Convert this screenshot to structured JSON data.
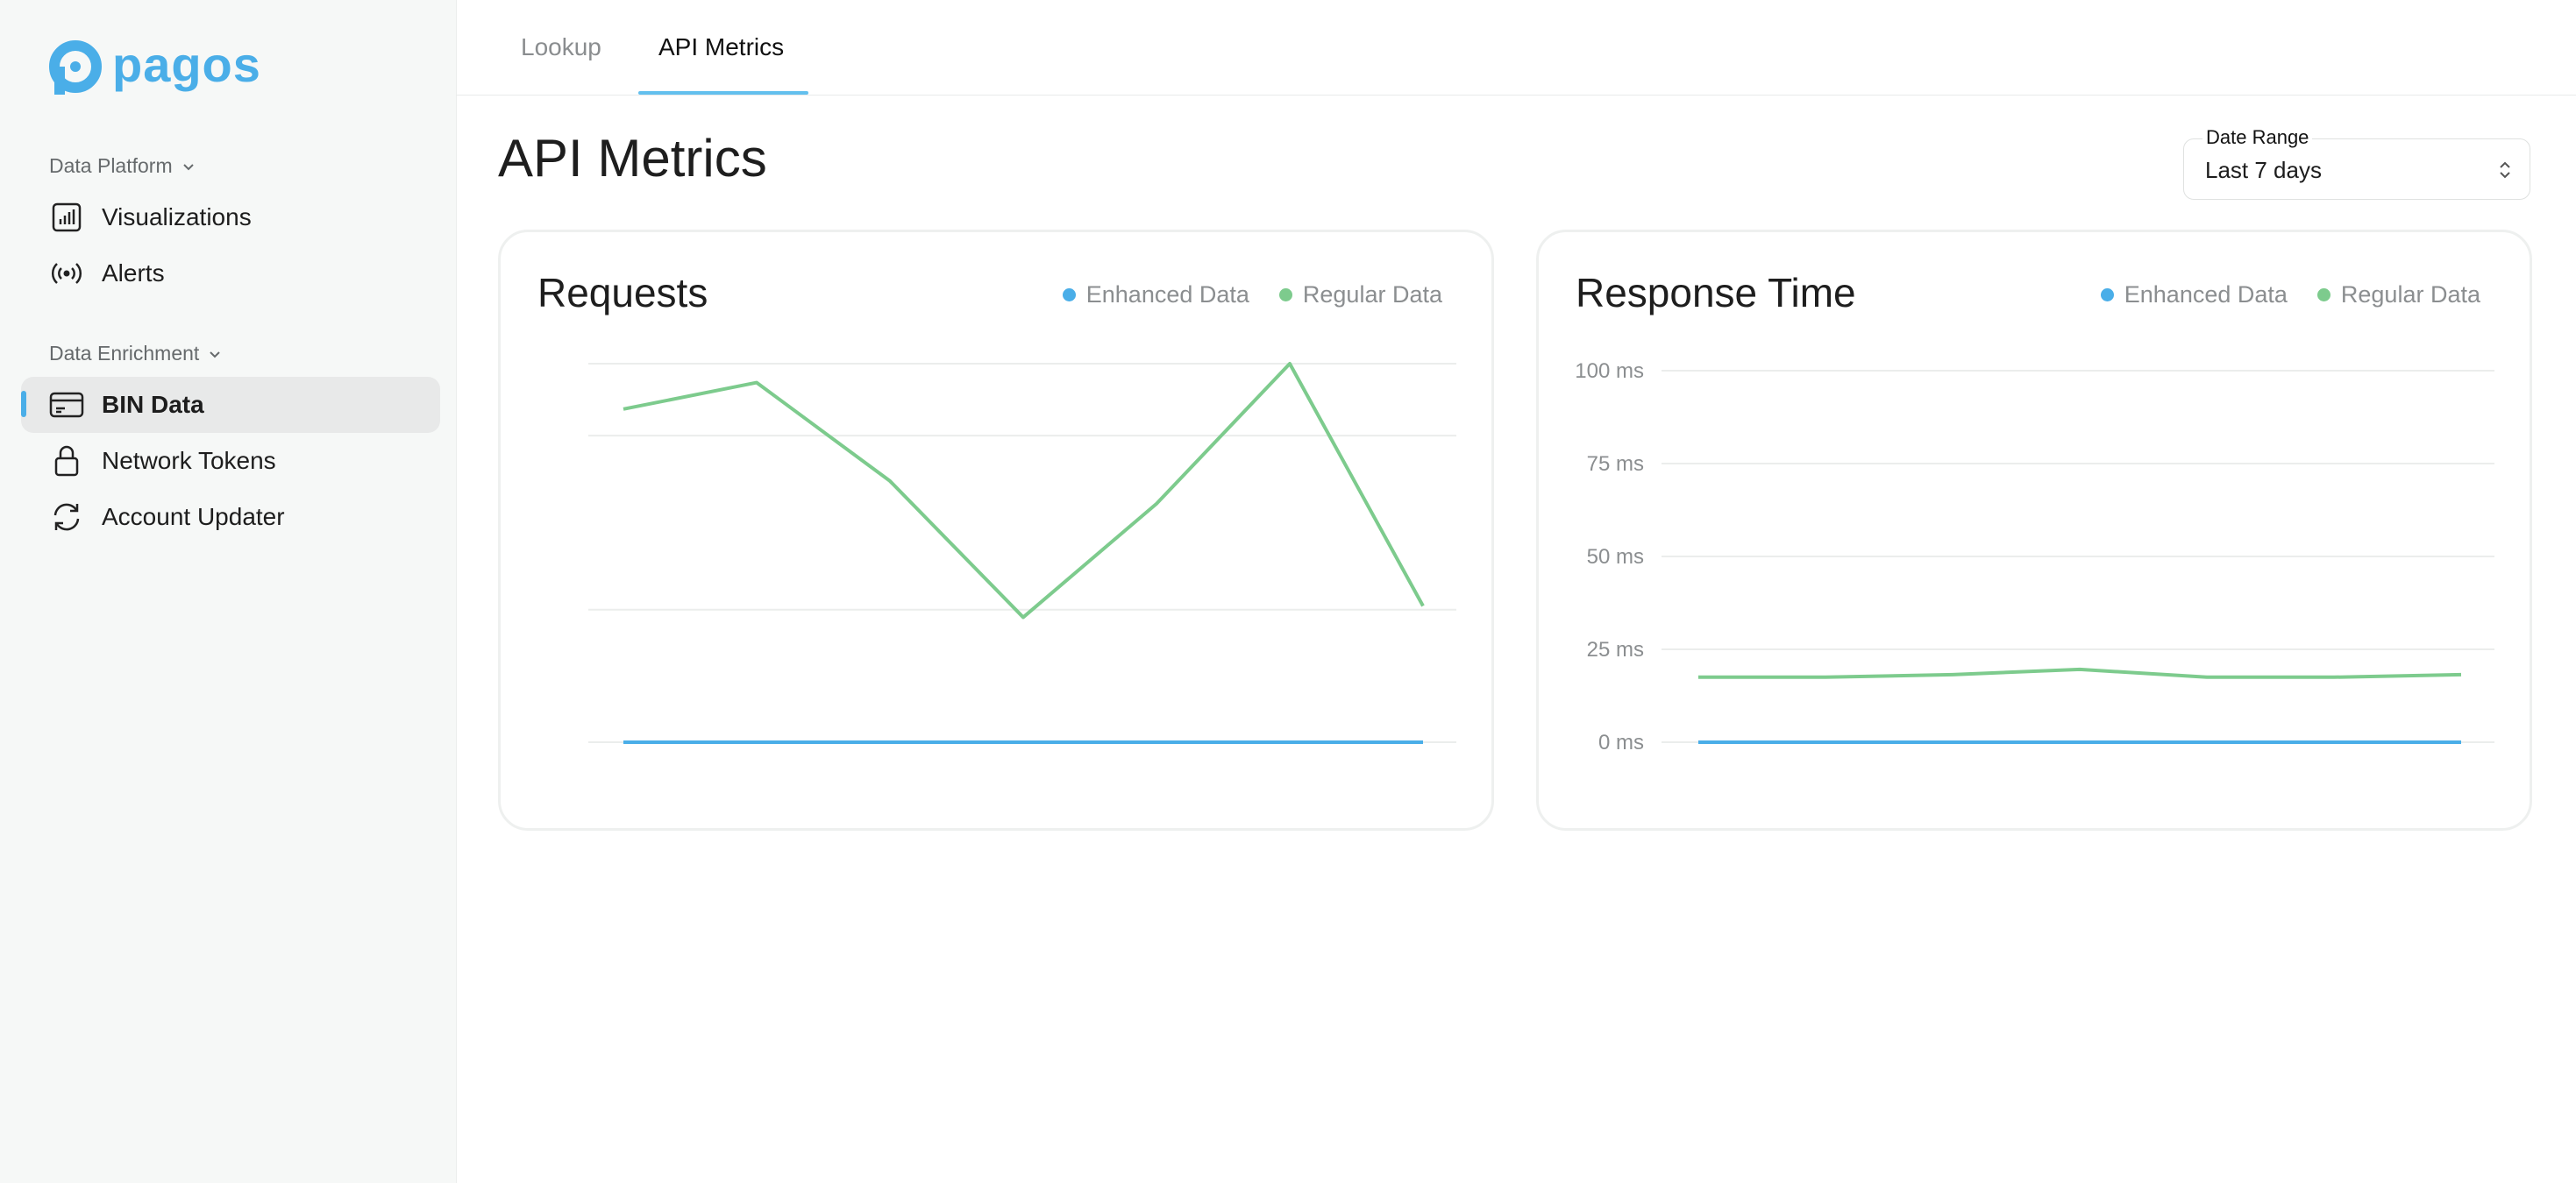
{
  "brand": {
    "name": "pagos",
    "color": "#4aaee8"
  },
  "sidebar": {
    "sections": [
      {
        "label": "Data Platform",
        "items": [
          {
            "label": "Visualizations",
            "icon": "bar-chart-icon"
          },
          {
            "label": "Alerts",
            "icon": "broadcast-icon"
          }
        ]
      },
      {
        "label": "Data Enrichment",
        "items": [
          {
            "label": "BIN Data",
            "icon": "credit-card-icon",
            "active": true
          },
          {
            "label": "Network Tokens",
            "icon": "lock-icon"
          },
          {
            "label": "Account Updater",
            "icon": "refresh-icon"
          }
        ]
      }
    ]
  },
  "tabs": [
    {
      "label": "Lookup",
      "active": false
    },
    {
      "label": "API Metrics",
      "active": true
    }
  ],
  "page": {
    "title": "API Metrics"
  },
  "date_range": {
    "label": "Date Range",
    "value": "Last 7 days"
  },
  "colors": {
    "enhanced": "#4aaee8",
    "regular": "#7dcb8d",
    "grid": "#ebedec"
  },
  "chart_data": [
    {
      "type": "line",
      "title": "Requests",
      "x": [
        1,
        2,
        3,
        4,
        5,
        6,
        7
      ],
      "ylim": [
        0,
        100
      ],
      "legend": "top-right",
      "grid": true,
      "series": [
        {
          "name": "Enhanced Data",
          "values": [
            0,
            0,
            0,
            0,
            0,
            0,
            0
          ]
        },
        {
          "name": "Regular Data",
          "values": [
            88,
            95,
            69,
            33,
            63,
            100,
            36
          ]
        }
      ]
    },
    {
      "type": "line",
      "title": "Response Time",
      "x": [
        1,
        2,
        3,
        4,
        5,
        6,
        7
      ],
      "ylim": [
        0,
        100
      ],
      "yticks": [
        "0 ms",
        "25 ms",
        "50 ms",
        "75 ms",
        "100 ms"
      ],
      "legend": "top-right",
      "grid": true,
      "series": [
        {
          "name": "Enhanced Data",
          "values": [
            0,
            0,
            0,
            0,
            0,
            0,
            0
          ]
        },
        {
          "name": "Regular Data",
          "values": [
            17.5,
            17.5,
            18.2,
            19.6,
            17.5,
            17.5,
            18.2
          ]
        }
      ]
    }
  ]
}
